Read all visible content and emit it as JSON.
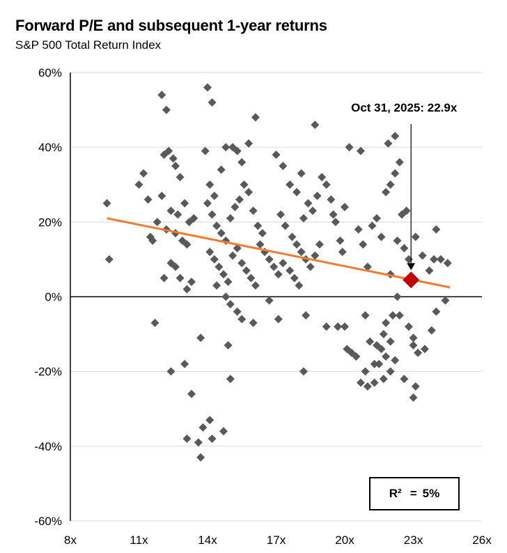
{
  "chart_data": {
    "type": "scatter",
    "title": "Forward P/E and subsequent 1-year returns",
    "subtitle": "S&P 500 Total Return Index",
    "xlabel": "",
    "ylabel": "",
    "xlim": [
      8,
      26
    ],
    "ylim": [
      -60,
      60
    ],
    "x_ticks": [
      8,
      11,
      14,
      17,
      20,
      23,
      26
    ],
    "x_tick_labels": [
      "8x",
      "11x",
      "14x",
      "17x",
      "20x",
      "23x",
      "26x"
    ],
    "y_ticks": [
      60,
      40,
      20,
      0,
      -20,
      -40,
      -60
    ],
    "y_tick_labels": [
      "60%",
      "40%",
      "20%",
      "0%",
      "-20%",
      "-40%",
      "-60%"
    ],
    "grid": "horizontal",
    "marker_color": "#595959",
    "trendline": {
      "x": [
        9.6,
        24.6
      ],
      "y": [
        21,
        2.5
      ],
      "color": "#ED7D31"
    },
    "highlight": {
      "x": 22.9,
      "y": 4.5,
      "color": "#C00000",
      "label": "Oct 31, 2025: 22.9x"
    },
    "r_squared": {
      "label": "R²",
      "equals": "=",
      "value": "5%"
    },
    "points": [
      [
        9.6,
        25
      ],
      [
        9.7,
        10
      ],
      [
        11,
        30
      ],
      [
        11.2,
        33
      ],
      [
        11.4,
        26
      ],
      [
        11.5,
        16
      ],
      [
        11.6,
        15
      ],
      [
        11.8,
        20
      ],
      [
        12.0,
        54
      ],
      [
        12.2,
        50
      ],
      [
        12.1,
        38
      ],
      [
        12.3,
        39
      ],
      [
        12.5,
        37
      ],
      [
        12.6,
        35
      ],
      [
        12.8,
        32
      ],
      [
        12.0,
        27
      ],
      [
        12.4,
        23
      ],
      [
        12.7,
        22
      ],
      [
        13.0,
        25
      ],
      [
        13.2,
        20
      ],
      [
        13.4,
        21
      ],
      [
        12.2,
        18
      ],
      [
        12.6,
        17
      ],
      [
        12.9,
        15
      ],
      [
        13.1,
        14
      ],
      [
        12.4,
        9
      ],
      [
        12.6,
        8
      ],
      [
        12.8,
        5
      ],
      [
        13.1,
        2
      ],
      [
        13.3,
        4
      ],
      [
        12.1,
        5
      ],
      [
        11.7,
        -7
      ],
      [
        12.4,
        -20
      ],
      [
        13.0,
        -18
      ],
      [
        13.3,
        -26
      ],
      [
        13.7,
        -11
      ],
      [
        13.1,
        -38
      ],
      [
        13.6,
        -39
      ],
      [
        13.8,
        -35
      ],
      [
        14.1,
        -33
      ],
      [
        14.2,
        -38
      ],
      [
        13.7,
        -43
      ],
      [
        14.7,
        -36
      ],
      [
        15.0,
        -22
      ],
      [
        14.9,
        -13
      ],
      [
        14.0,
        56
      ],
      [
        14.2,
        52
      ],
      [
        13.9,
        39
      ],
      [
        14.1,
        30
      ],
      [
        14.3,
        27
      ],
      [
        14.6,
        34
      ],
      [
        14.8,
        40
      ],
      [
        15.1,
        40
      ],
      [
        15.3,
        39
      ],
      [
        15.5,
        36
      ],
      [
        15.8,
        41
      ],
      [
        16.1,
        48
      ],
      [
        14.0,
        25
      ],
      [
        14.2,
        22
      ],
      [
        14.4,
        19
      ],
      [
        14.6,
        17
      ],
      [
        14.8,
        15
      ],
      [
        15.0,
        21
      ],
      [
        15.2,
        24
      ],
      [
        15.4,
        26
      ],
      [
        15.6,
        30
      ],
      [
        15.8,
        28
      ],
      [
        16.0,
        23
      ],
      [
        16.2,
        19
      ],
      [
        16.4,
        17
      ],
      [
        14.1,
        12
      ],
      [
        14.3,
        10
      ],
      [
        14.5,
        8
      ],
      [
        14.7,
        6
      ],
      [
        14.9,
        4
      ],
      [
        15.1,
        11
      ],
      [
        15.3,
        13
      ],
      [
        15.5,
        9
      ],
      [
        15.7,
        7
      ],
      [
        15.9,
        5
      ],
      [
        16.1,
        3
      ],
      [
        16.3,
        14
      ],
      [
        16.5,
        12
      ],
      [
        16.7,
        10
      ],
      [
        16.9,
        8
      ],
      [
        17.1,
        6
      ],
      [
        14.4,
        3
      ],
      [
        14.8,
        0
      ],
      [
        15.0,
        -2
      ],
      [
        15.3,
        -4
      ],
      [
        15.5,
        -6
      ],
      [
        16.0,
        -7
      ],
      [
        16.7,
        -1
      ],
      [
        17.1,
        -6
      ],
      [
        17.0,
        38
      ],
      [
        17.3,
        35
      ],
      [
        17.6,
        30
      ],
      [
        17.9,
        28
      ],
      [
        18.1,
        33
      ],
      [
        17.2,
        22
      ],
      [
        17.4,
        19
      ],
      [
        17.7,
        16
      ],
      [
        17.9,
        14
      ],
      [
        18.1,
        12
      ],
      [
        17.3,
        9
      ],
      [
        17.6,
        7
      ],
      [
        17.8,
        5
      ],
      [
        18.0,
        3
      ],
      [
        18.3,
        10
      ],
      [
        18.5,
        8
      ],
      [
        18.7,
        11
      ],
      [
        18.9,
        14
      ],
      [
        18.2,
        21
      ],
      [
        18.4,
        25
      ],
      [
        18.6,
        23
      ],
      [
        18.8,
        27
      ],
      [
        19.0,
        32
      ],
      [
        18.7,
        46
      ],
      [
        19.2,
        30
      ],
      [
        19.4,
        26
      ],
      [
        19.6,
        20
      ],
      [
        19.8,
        15
      ],
      [
        19.5,
        22
      ],
      [
        20.0,
        24
      ],
      [
        19.9,
        12
      ],
      [
        18.3,
        -5
      ],
      [
        18.2,
        -20
      ],
      [
        19.2,
        -8
      ],
      [
        19.7,
        -8
      ],
      [
        20.0,
        -8
      ],
      [
        20.1,
        -14
      ],
      [
        20.3,
        -15
      ],
      [
        20.5,
        -16
      ],
      [
        20.2,
        40
      ],
      [
        20.7,
        39
      ],
      [
        20.6,
        18
      ],
      [
        20.8,
        14
      ],
      [
        21.0,
        8
      ],
      [
        21.2,
        19
      ],
      [
        21.4,
        21
      ],
      [
        21.6,
        16
      ],
      [
        21.8,
        28
      ],
      [
        22.0,
        30
      ],
      [
        22.2,
        33
      ],
      [
        22.4,
        36
      ],
      [
        22.2,
        43
      ],
      [
        21.9,
        41
      ],
      [
        22.5,
        22
      ],
      [
        22.7,
        23
      ],
      [
        22.3,
        15
      ],
      [
        22.6,
        13
      ],
      [
        22.0,
        6
      ],
      [
        22.3,
        0
      ],
      [
        22.8,
        10
      ],
      [
        23.1,
        16
      ],
      [
        23.4,
        11
      ],
      [
        23.7,
        7
      ],
      [
        23.9,
        10
      ],
      [
        24.2,
        10
      ],
      [
        24.0,
        18
      ],
      [
        24.5,
        9
      ],
      [
        24.4,
        -1
      ],
      [
        24.0,
        -4
      ],
      [
        23.8,
        -9
      ],
      [
        23.5,
        -14
      ],
      [
        23.2,
        -15
      ],
      [
        23.0,
        -11
      ],
      [
        23.0,
        -13
      ],
      [
        22.8,
        -8
      ],
      [
        23.1,
        -24
      ],
      [
        23.0,
        -27
      ],
      [
        22.6,
        -22
      ],
      [
        22.2,
        -17
      ],
      [
        22.0,
        -12
      ],
      [
        21.8,
        -16
      ],
      [
        21.7,
        -10
      ],
      [
        21.5,
        -18
      ],
      [
        21.3,
        -18
      ],
      [
        21.1,
        -12
      ],
      [
        20.9,
        -20
      ],
      [
        20.7,
        -23
      ],
      [
        21.0,
        -24
      ],
      [
        21.3,
        -23
      ],
      [
        21.7,
        -22
      ],
      [
        22.0,
        -20
      ],
      [
        21.6,
        -14
      ],
      [
        21.4,
        -13
      ],
      [
        21.8,
        -7
      ],
      [
        22.1,
        -5
      ],
      [
        22.4,
        -5
      ],
      [
        20.9,
        -5
      ]
    ]
  }
}
